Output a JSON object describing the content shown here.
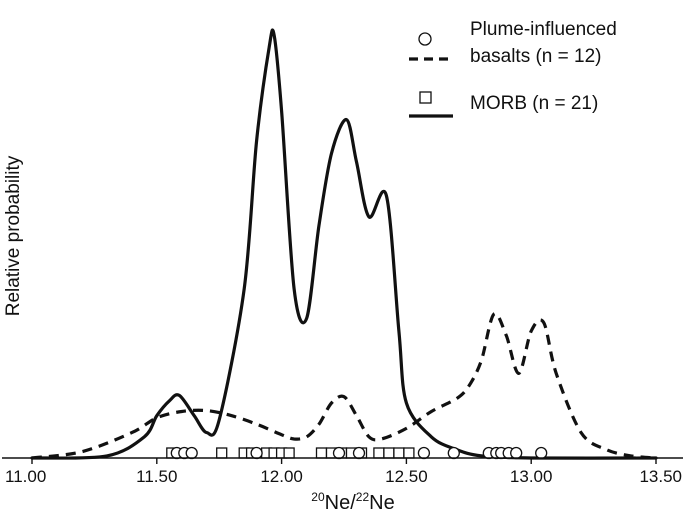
{
  "chart_data": {
    "type": "line",
    "title": "",
    "xlabel": {
      "sup1": "20",
      "main1": "Ne/",
      "sup2": "22",
      "main2": "Ne"
    },
    "ylabel": "Relative probability",
    "xlim": [
      11.0,
      13.5
    ],
    "ylim": [
      0,
      1.0
    ],
    "xticks": [
      "11.00",
      "11.50",
      "12.00",
      "12.50",
      "13.00",
      "13.50"
    ],
    "grid": false,
    "legend_position": "top-right",
    "legend": {
      "plume": {
        "line1": "Plume-influenced",
        "line2": "basalts (n = 12)"
      },
      "morb": {
        "label": "MORB (n = 21)"
      }
    },
    "series": [
      {
        "name": "Plume-influenced basalts (n = 12)",
        "style": "dashed",
        "marker": "circle",
        "x": [
          11.0,
          11.2,
          11.4,
          11.5,
          11.6,
          11.7,
          11.8,
          11.9,
          12.0,
          12.05,
          12.1,
          12.15,
          12.2,
          12.25,
          12.3,
          12.35,
          12.4,
          12.5,
          12.6,
          12.7,
          12.75,
          12.8,
          12.85,
          12.9,
          12.95,
          13.0,
          13.05,
          13.1,
          13.2,
          13.3,
          13.4,
          13.5
        ],
        "y": [
          0.0,
          0.015,
          0.06,
          0.095,
          0.11,
          0.112,
          0.1,
          0.08,
          0.055,
          0.045,
          0.05,
          0.08,
          0.13,
          0.145,
          0.1,
          0.05,
          0.045,
          0.07,
          0.11,
          0.14,
          0.17,
          0.23,
          0.34,
          0.29,
          0.2,
          0.3,
          0.32,
          0.2,
          0.06,
          0.02,
          0.005,
          0.0
        ]
      },
      {
        "name": "MORB (n = 21)",
        "style": "solid",
        "marker": "square",
        "x": [
          11.0,
          11.3,
          11.45,
          11.5,
          11.55,
          11.59,
          11.65,
          11.7,
          11.75,
          11.85,
          11.9,
          11.95,
          11.97,
          12.0,
          12.05,
          12.1,
          12.15,
          12.2,
          12.26,
          12.3,
          12.35,
          12.42,
          12.47,
          12.5,
          12.6,
          12.7,
          12.8,
          13.0,
          13.5
        ],
        "y": [
          0.0,
          0.005,
          0.05,
          0.1,
          0.135,
          0.148,
          0.1,
          0.06,
          0.09,
          0.4,
          0.75,
          0.97,
          1.0,
          0.82,
          0.4,
          0.33,
          0.55,
          0.72,
          0.8,
          0.7,
          0.57,
          0.62,
          0.3,
          0.13,
          0.05,
          0.02,
          0.005,
          0.0,
          0.0
        ]
      }
    ],
    "markers": {
      "circles": [
        11.58,
        11.61,
        11.64,
        11.9,
        12.23,
        12.31,
        12.57,
        12.69,
        12.83,
        12.86,
        12.88,
        12.91,
        12.94,
        13.04
      ],
      "squares": [
        11.56,
        11.76,
        11.85,
        11.88,
        11.94,
        11.97,
        12.0,
        12.03,
        12.16,
        12.2,
        12.24,
        12.28,
        12.32,
        12.39,
        12.43,
        12.47,
        12.51
      ]
    }
  }
}
